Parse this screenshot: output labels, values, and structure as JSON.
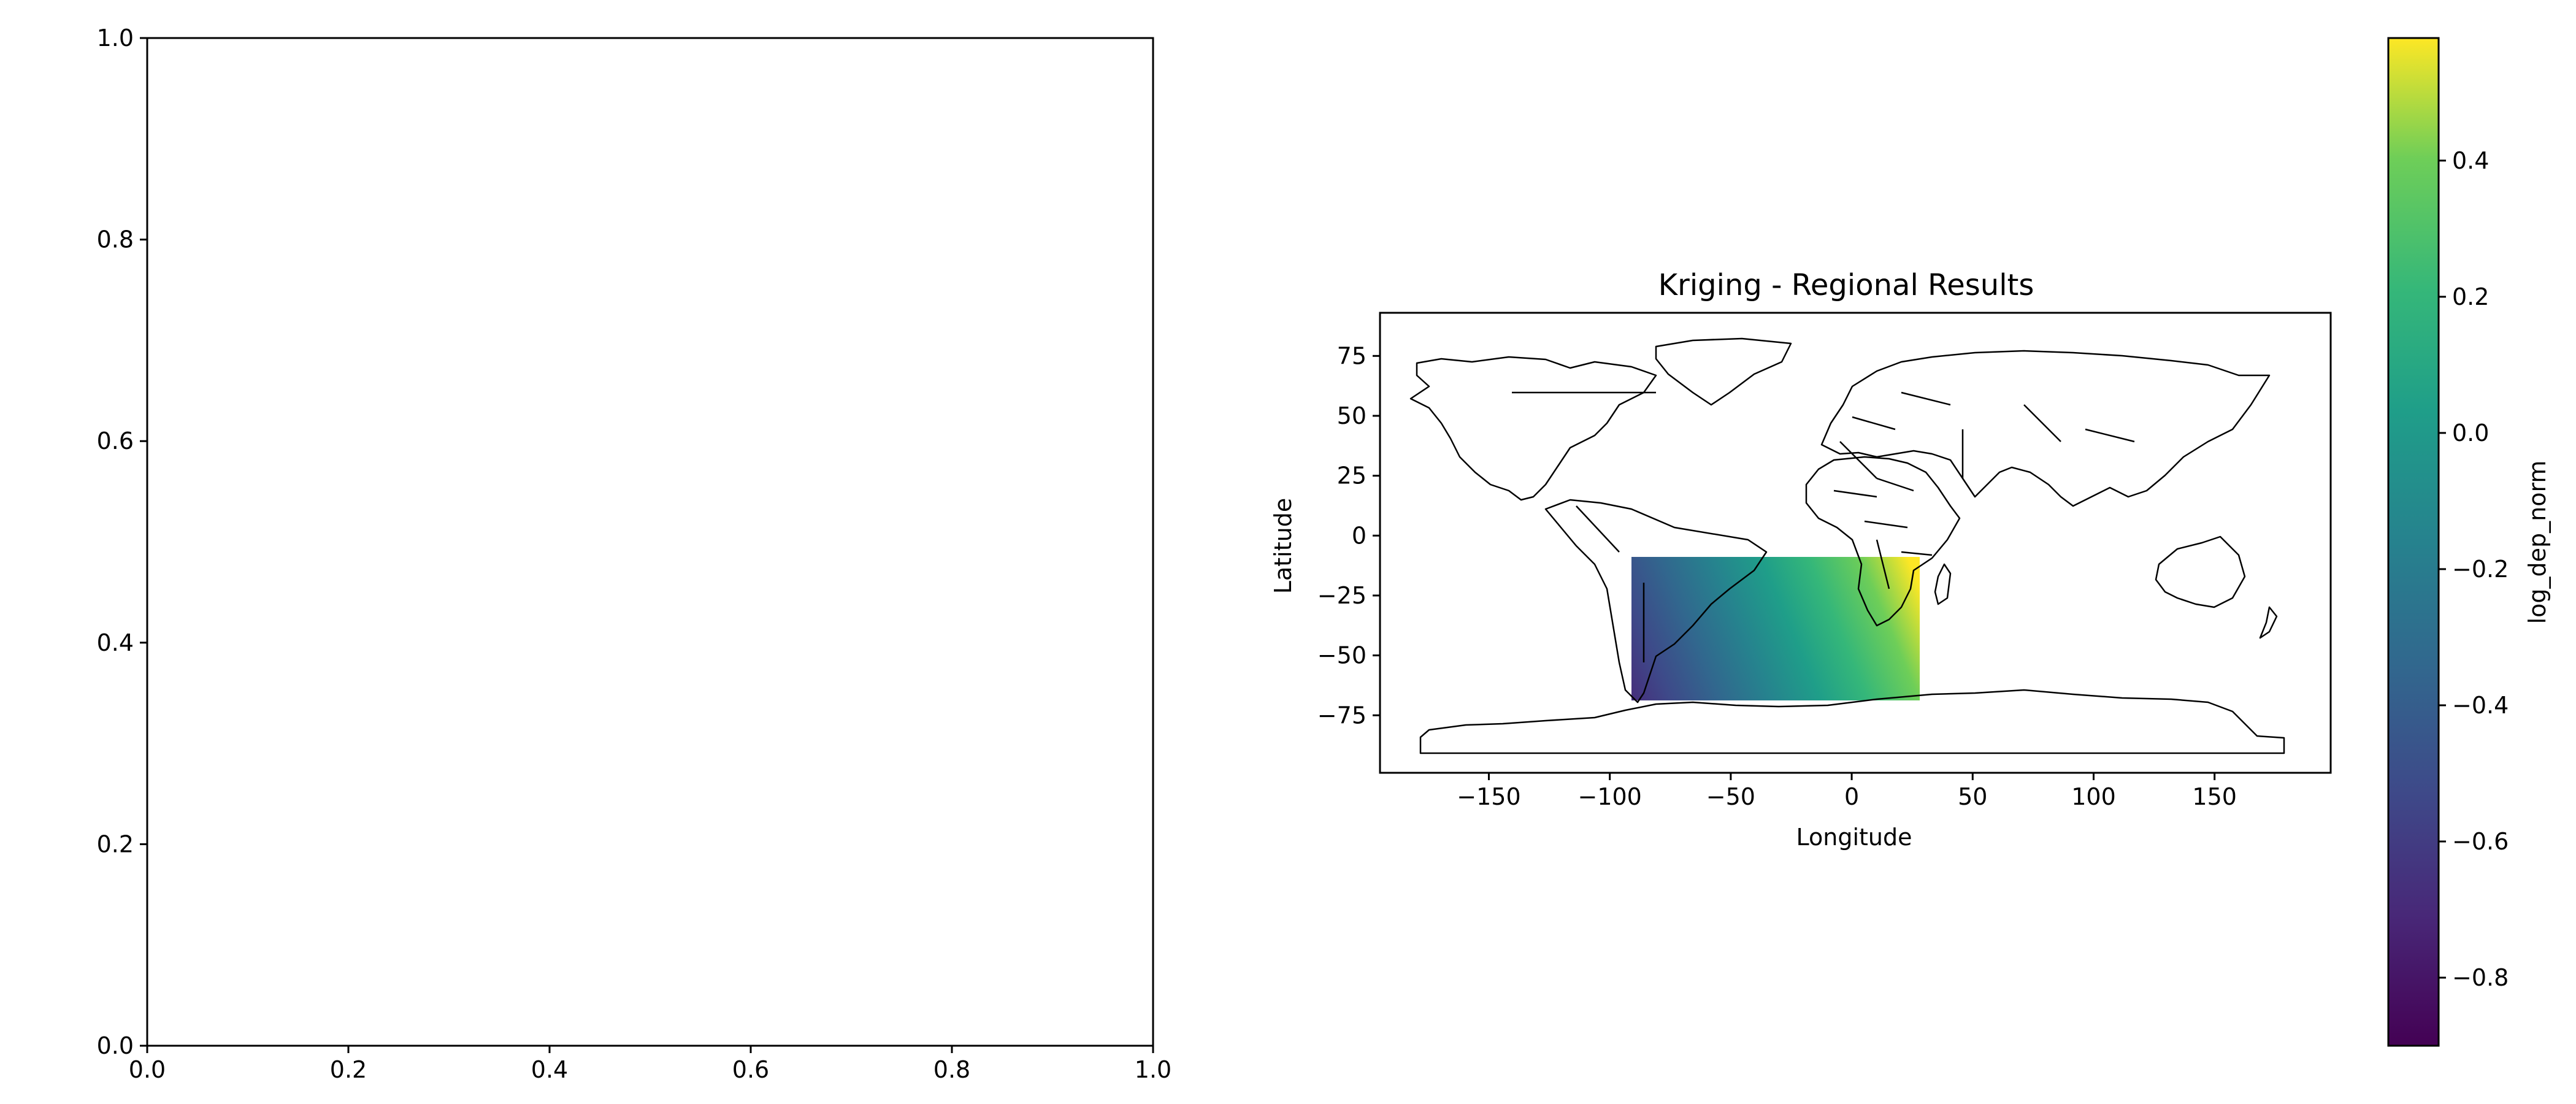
{
  "chart_data": [
    {
      "type": "scatter",
      "title": "",
      "xlabel": "",
      "ylabel": "",
      "xlim": [
        0.0,
        1.0
      ],
      "ylim": [
        0.0,
        1.0
      ],
      "xticks": [
        "0.0",
        "0.2",
        "0.4",
        "0.6",
        "0.8",
        "1.0"
      ],
      "yticks": [
        "0.0",
        "0.2",
        "0.4",
        "0.6",
        "0.8",
        "1.0"
      ],
      "series": [],
      "grid": false
    },
    {
      "type": "heatmap",
      "title": "Kriging - Regional Results",
      "xlabel": "Longitude",
      "ylabel": "Latitude",
      "xlim": [
        -195,
        198
      ],
      "ylim": [
        -99,
        93
      ],
      "xticks": [
        "−150",
        "−100",
        "−50",
        "0",
        "50",
        "100",
        "150"
      ],
      "yticks": [
        "75",
        "50",
        "25",
        "0",
        "−25",
        "−50",
        "−75"
      ],
      "grid": false,
      "basemap": "world country borders",
      "field": {
        "lon_range": [
          -90,
          30
        ],
        "lat_range": [
          -70,
          -10
        ],
        "colormap": "viridis",
        "gradient": "increases toward the north-east; highest near lon 20, lat -10",
        "min_value": -0.9,
        "max_value": 0.58
      },
      "colorbar": {
        "label": "log_dep_norm",
        "range": [
          -0.9,
          0.58
        ],
        "ticks": [
          0.4,
          0.2,
          0.0,
          -0.2,
          -0.4,
          -0.6,
          -0.8
        ],
        "tick_labels": [
          "0.4",
          "0.2",
          "0.0",
          "−0.2",
          "−0.4",
          "−0.6",
          "−0.8"
        ]
      }
    }
  ]
}
